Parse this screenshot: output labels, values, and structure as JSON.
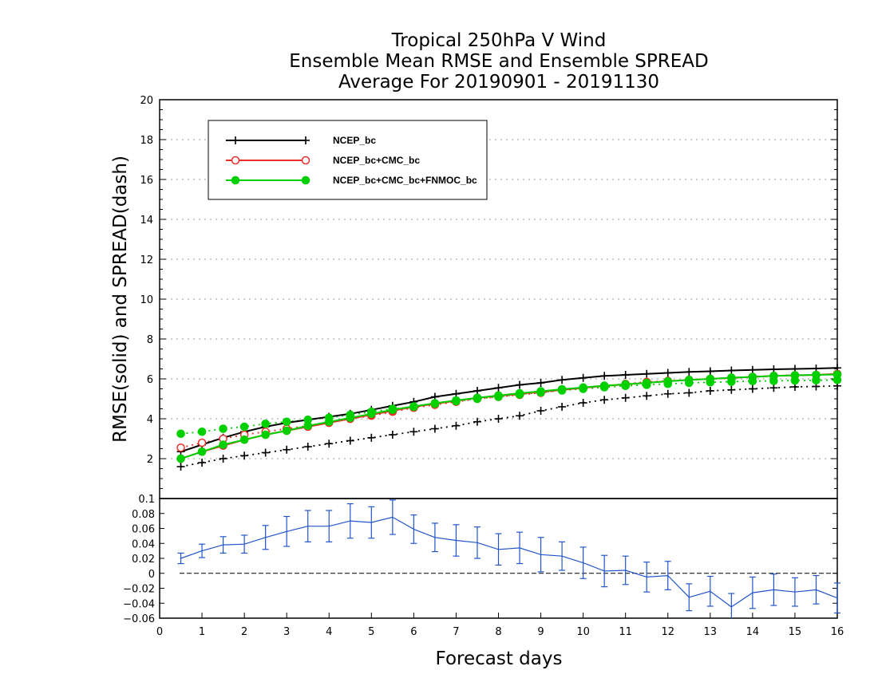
{
  "chart_data": [
    {
      "type": "line",
      "title_lines": [
        "Tropical 250hPa V Wind",
        "Ensemble Mean RMSE and Ensemble SPREAD",
        "Average For 20190901 - 20191130"
      ],
      "ylabel": "RMSE(solid)  and  SPREAD(dash)",
      "xlabel": "",
      "ylim": [
        0,
        20
      ],
      "yticks": [
        2,
        4,
        6,
        8,
        10,
        12,
        14,
        16,
        18,
        20
      ],
      "xlim": [
        0,
        16
      ],
      "grid": true,
      "legend_position": "top-left",
      "x": [
        0.5,
        1,
        1.5,
        2,
        2.5,
        3,
        3.5,
        4,
        4.5,
        5,
        5.5,
        6,
        6.5,
        7,
        7.5,
        8,
        8.5,
        9,
        9.5,
        10,
        10.5,
        11,
        11.5,
        12,
        12.5,
        13,
        13.5,
        14,
        14.5,
        15,
        15.5,
        16
      ],
      "series": [
        {
          "name": "NCEP_bc",
          "color": "#000000",
          "marker": "plus",
          "rmse": [
            2.35,
            2.7,
            3.05,
            3.35,
            3.6,
            3.8,
            3.95,
            4.1,
            4.25,
            4.45,
            4.65,
            4.85,
            5.1,
            5.25,
            5.4,
            5.55,
            5.7,
            5.8,
            5.95,
            6.05,
            6.15,
            6.2,
            6.25,
            6.3,
            6.35,
            6.38,
            6.42,
            6.45,
            6.48,
            6.5,
            6.52,
            6.55
          ],
          "spread": [
            1.6,
            1.8,
            2.0,
            2.15,
            2.3,
            2.45,
            2.6,
            2.75,
            2.9,
            3.05,
            3.2,
            3.35,
            3.5,
            3.65,
            3.85,
            4.0,
            4.15,
            4.4,
            4.6,
            4.8,
            4.95,
            5.05,
            5.15,
            5.25,
            5.3,
            5.4,
            5.45,
            5.5,
            5.55,
            5.6,
            5.62,
            5.65
          ]
        },
        {
          "name": "NCEP_bc+CMC_bc",
          "color": "#e8302a",
          "marker": "open-circle",
          "rmse": [
            2.0,
            2.35,
            2.65,
            2.95,
            3.2,
            3.4,
            3.6,
            3.8,
            4.0,
            4.2,
            4.4,
            4.6,
            4.75,
            4.9,
            5.05,
            5.15,
            5.25,
            5.35,
            5.45,
            5.55,
            5.65,
            5.72,
            5.8,
            5.88,
            5.95,
            6.0,
            6.05,
            6.1,
            6.15,
            6.18,
            6.2,
            6.25
          ],
          "spread": [
            2.55,
            2.8,
            3.0,
            3.2,
            3.35,
            3.5,
            3.65,
            3.8,
            4.0,
            4.15,
            4.35,
            4.55,
            4.7,
            4.85,
            5.0,
            5.1,
            5.2,
            5.3,
            5.45,
            5.55,
            5.65,
            5.75,
            5.85,
            5.9,
            5.95,
            6.0,
            6.05,
            6.1,
            6.15,
            6.18,
            6.2,
            6.25
          ]
        },
        {
          "name": "NCEP_bc+CMC_bc+FNMOC_bc",
          "color": "#00d000",
          "marker": "filled-circle",
          "rmse": [
            2.0,
            2.35,
            2.7,
            2.95,
            3.2,
            3.4,
            3.65,
            3.85,
            4.05,
            4.25,
            4.45,
            4.62,
            4.78,
            4.92,
            5.05,
            5.17,
            5.28,
            5.38,
            5.48,
            5.57,
            5.66,
            5.73,
            5.8,
            5.88,
            5.95,
            6.0,
            6.06,
            6.1,
            6.15,
            6.18,
            6.2,
            6.22
          ],
          "spread": [
            3.25,
            3.35,
            3.5,
            3.6,
            3.75,
            3.85,
            3.95,
            4.05,
            4.2,
            4.35,
            4.5,
            4.6,
            4.75,
            4.88,
            5.0,
            5.1,
            5.22,
            5.32,
            5.42,
            5.5,
            5.58,
            5.65,
            5.7,
            5.75,
            5.8,
            5.83,
            5.86,
            5.89,
            5.9,
            5.92,
            5.93,
            5.95
          ]
        }
      ]
    },
    {
      "type": "line",
      "ylim": [
        -0.06,
        0.1
      ],
      "yticks": [
        -0.06,
        -0.04,
        -0.02,
        0,
        0.02,
        0.04,
        0.06,
        0.08,
        0.1
      ],
      "ytick_labels": [
        "−0.06",
        "−0.04",
        "−0.02",
        "0",
        "0.02",
        "0.04",
        "0.06",
        "0.08",
        "0.1"
      ],
      "xlim": [
        0,
        16
      ],
      "xticks": [
        0,
        1,
        2,
        3,
        4,
        5,
        6,
        7,
        8,
        9,
        10,
        11,
        12,
        13,
        14,
        15,
        16
      ],
      "xticks_labels": [
        "0",
        "1",
        "2",
        "3",
        "4",
        "5",
        "6",
        "7",
        "8",
        "9",
        "10",
        "11",
        "12",
        "13",
        "14",
        "15",
        "16"
      ],
      "xlabel": "Forecast days",
      "zero_line": true,
      "x": [
        0.5,
        1,
        1.5,
        2,
        2.5,
        3,
        3.5,
        4,
        4.5,
        5,
        5.5,
        6,
        6.5,
        7,
        7.5,
        8,
        8.5,
        9,
        9.5,
        10,
        10.5,
        11,
        11.5,
        12,
        12.5,
        13,
        13.5,
        14,
        14.5,
        15,
        15.5,
        16
      ],
      "series": [
        {
          "color": "#2255cc",
          "values": [
            0.02,
            0.03,
            0.038,
            0.039,
            0.048,
            0.056,
            0.063,
            0.063,
            0.07,
            0.068,
            0.075,
            0.059,
            0.048,
            0.044,
            0.041,
            0.032,
            0.034,
            0.025,
            0.023,
            0.014,
            0.003,
            0.004,
            -0.005,
            -0.003,
            -0.032,
            -0.024,
            -0.045,
            -0.026,
            -0.022,
            -0.025,
            -0.022,
            -0.033
          ],
          "err": [
            0.007,
            0.009,
            0.011,
            0.012,
            0.016,
            0.02,
            0.021,
            0.021,
            0.023,
            0.021,
            0.023,
            0.019,
            0.019,
            0.021,
            0.021,
            0.021,
            0.021,
            0.023,
            0.019,
            0.021,
            0.021,
            0.019,
            0.02,
            0.019,
            0.018,
            0.02,
            0.018,
            0.021,
            0.021,
            0.019,
            0.019,
            0.02
          ]
        }
      ]
    }
  ]
}
